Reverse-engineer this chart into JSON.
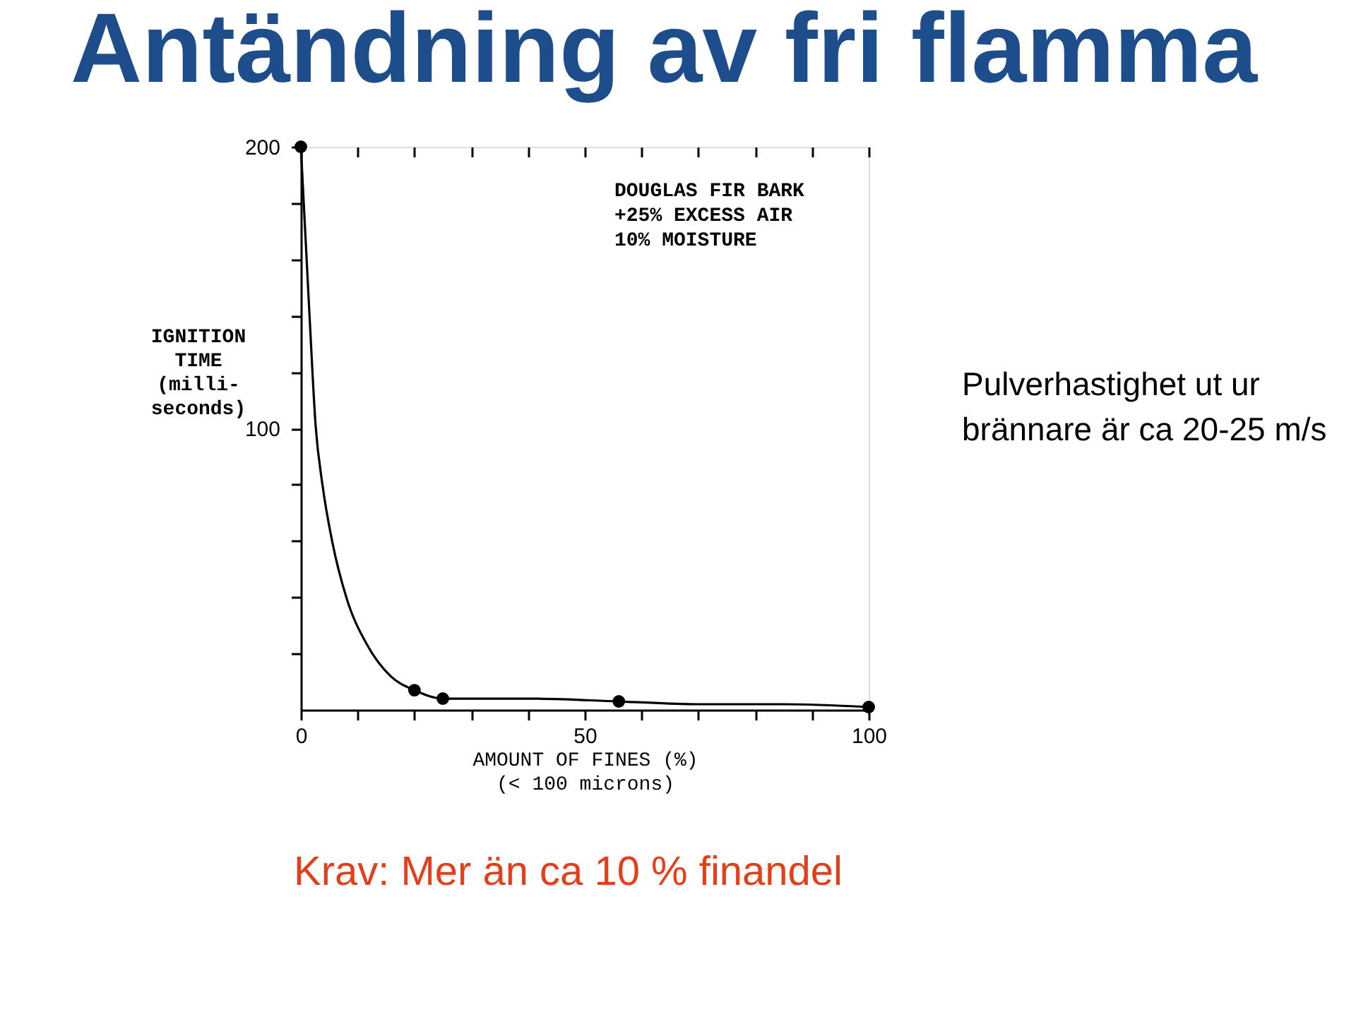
{
  "chart_data": {
    "type": "scatter",
    "title": "Antändning av fri flamma",
    "xlabel": "AMOUNT OF FINES (%)\n(< 100 microns)",
    "ylabel": "IGNITION\nTIME\n(milli-\nseconds)",
    "annotations": [
      "DOUGLAS FIR BARK\n+25% EXCESS AIR\n10% MOISTURE",
      "Pulverhastighet ut ur\nbrännare är ca 20-25  m/s",
      "Krav: Mer än ca 10 % finandel"
    ],
    "xlim": [
      0,
      100
    ],
    "xticks": [
      0,
      {
        "value": 10,
        "label": null
      },
      {
        "value": 20,
        "label": null
      },
      {
        "value": 30,
        "label": null
      },
      {
        "value": 40,
        "label": null
      },
      50,
      {
        "value": 60,
        "label": null
      },
      {
        "value": 70,
        "label": null
      },
      {
        "value": 80,
        "label": null
      },
      {
        "value": 90,
        "label": null
      },
      100
    ],
    "ylim": [
      0,
      200
    ],
    "yticks": [
      {
        "value": 20,
        "label": null
      },
      {
        "value": 40,
        "label": null
      },
      {
        "value": 60,
        "label": null
      },
      {
        "value": 80,
        "label": null
      },
      100,
      {
        "value": 120,
        "label": null
      },
      {
        "value": 140,
        "label": null
      },
      {
        "value": 160,
        "label": null
      },
      {
        "value": 180,
        "label": null
      },
      200
    ],
    "grid": false,
    "series": [
      {
        "marker": "circle",
        "color": "#000000",
        "x": [
          0,
          20,
          25,
          56,
          100
        ],
        "values": [
          200,
          7,
          4,
          3,
          1
        ]
      },
      {
        "type": "line",
        "line_style": "solid",
        "color": "#000000",
        "x": [
          0,
          1.5,
          2.6,
          3.8,
          5.5,
          8,
          11.7,
          15.8,
          20,
          25,
          40,
          56,
          70,
          85,
          100
        ],
        "values": [
          200,
          141,
          101,
          80,
          60,
          40,
          23,
          12,
          7,
          4,
          4,
          3,
          2,
          2,
          1
        ]
      }
    ]
  }
}
